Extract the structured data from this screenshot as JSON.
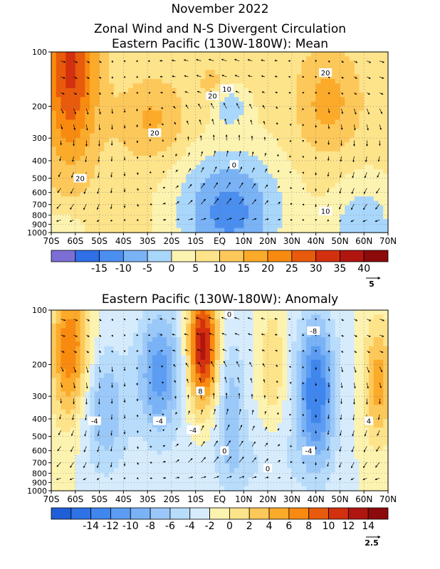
{
  "titles": {
    "month": "November 2022",
    "main": "Zonal Wind and N-S Divergent Circulation",
    "mean_panel": "Eastern Pacific (130W-180W): Mean",
    "anomaly_panel": "Eastern Pacific (130W-180W): Anomaly"
  },
  "colors": {
    "mean_scale": [
      "#7b6fd6",
      "#2f6fe8",
      "#4a8ef0",
      "#7ab2f6",
      "#a9d6fb",
      "#fdf3b0",
      "#fde38a",
      "#fdc85a",
      "#fbaa2a",
      "#f88a10",
      "#e85a0c",
      "#d2300e",
      "#b01510",
      "#8c0a0a"
    ],
    "anomaly_scale": [
      "#1f5fd6",
      "#2f72e6",
      "#3f86ee",
      "#5c9cf2",
      "#7ab2f6",
      "#9ac8f8",
      "#b8dcfb",
      "#d6ecfd",
      "#fdf3b0",
      "#fde38a",
      "#fdc85a",
      "#fbaa2a",
      "#f88a10",
      "#e85a0c",
      "#d2300e",
      "#b01510",
      "#8c0a0a"
    ]
  },
  "chart_data": [
    {
      "type": "heatmap",
      "title": "Eastern Pacific (130W-180W): Mean",
      "x_ticks": [
        "70S",
        "60S",
        "50S",
        "40S",
        "30S",
        "20S",
        "10S",
        "EQ",
        "10N",
        "20N",
        "30N",
        "40N",
        "50N",
        "60N",
        "70N"
      ],
      "y_ticks": [
        "100",
        "200",
        "300",
        "400",
        "500",
        "600",
        "700",
        "800",
        "900",
        "1000"
      ],
      "y_scale": "log pressure (hPa), 1000 at bottom",
      "colorbar_levels": [
        -20,
        -15,
        -10,
        -5,
        0,
        5,
        10,
        15,
        20,
        25,
        30,
        35,
        40,
        45
      ],
      "colorbar_labels": [
        "-15",
        "-10",
        "-5",
        "0",
        "5",
        "10",
        "15",
        "20",
        "25",
        "30",
        "35",
        "40"
      ],
      "contour_labels": [
        {
          "text": "20",
          "lat": -58,
          "p": 500
        },
        {
          "text": "20",
          "lat": -27,
          "p": 280
        },
        {
          "text": "20",
          "lat": -3,
          "p": 175
        },
        {
          "text": "10",
          "lat": 3,
          "p": 160
        },
        {
          "text": "20",
          "lat": 44,
          "p": 130
        },
        {
          "text": "0",
          "lat": 6,
          "p": 420
        },
        {
          "text": "10",
          "lat": 44,
          "p": 760
        }
      ],
      "vector_reference_label": "5",
      "grid": true
    },
    {
      "type": "heatmap",
      "title": "Eastern Pacific (130W-180W): Anomaly",
      "x_ticks": [
        "70S",
        "60S",
        "50S",
        "40S",
        "30S",
        "20S",
        "10S",
        "EQ",
        "10N",
        "20N",
        "30N",
        "40N",
        "50N",
        "60N",
        "70N"
      ],
      "y_ticks": [
        "100",
        "200",
        "300",
        "400",
        "500",
        "600",
        "700",
        "800",
        "900",
        "1000"
      ],
      "y_scale": "log pressure (hPa), 1000 at bottom",
      "colorbar_levels": [
        -16,
        -14,
        -12,
        -10,
        -8,
        -6,
        -4,
        -2,
        0,
        2,
        4,
        6,
        8,
        10,
        12,
        14,
        16
      ],
      "colorbar_labels": [
        "-14",
        "-12",
        "-10",
        "-8",
        "-6",
        "-4",
        "-2",
        "0",
        "2",
        "4",
        "6",
        "8",
        "10",
        "12",
        "14"
      ],
      "contour_labels": [
        {
          "text": "-4",
          "lat": -52,
          "p": 410
        },
        {
          "text": "-4",
          "lat": -25,
          "p": 410
        },
        {
          "text": "8",
          "lat": -8,
          "p": 280
        },
        {
          "text": "-4",
          "lat": -11,
          "p": 460
        },
        {
          "text": "0",
          "lat": 4,
          "p": 105
        },
        {
          "text": "0",
          "lat": 2,
          "p": 600
        },
        {
          "text": "0",
          "lat": 20,
          "p": 750
        },
        {
          "text": "-8",
          "lat": 39,
          "p": 130
        },
        {
          "text": "-4",
          "lat": 37,
          "p": 600
        },
        {
          "text": "4",
          "lat": 62,
          "p": 410
        }
      ],
      "vector_reference_label": "2.5",
      "grid": true
    }
  ]
}
